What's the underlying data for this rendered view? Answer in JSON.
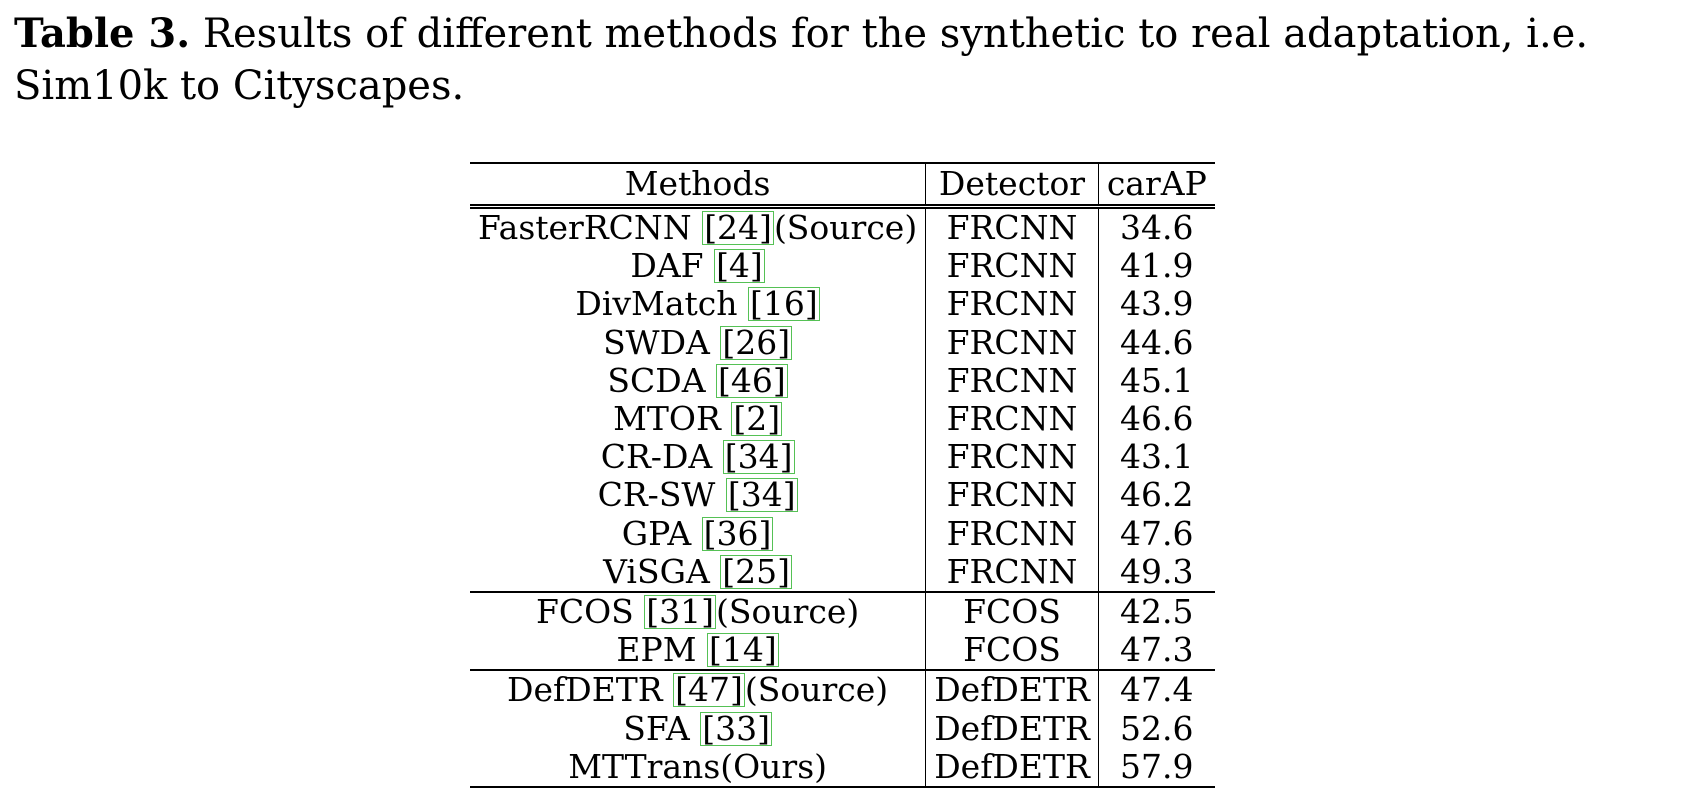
{
  "caption": {
    "label": "Table 3.",
    "text": "Results of different methods for the synthetic to real adaptation, i.e. Sim10k to Cityscapes."
  },
  "table": {
    "headers": [
      "Methods",
      "Detector",
      "carAP"
    ],
    "groups": [
      [
        {
          "method": "FasterRCNN",
          "ref": "[24]",
          "suffix": "(Source)",
          "detector": "FRCNN",
          "carAP": "34.6"
        },
        {
          "method": "DAF",
          "ref": "[4]",
          "suffix": "",
          "detector": "FRCNN",
          "carAP": "41.9"
        },
        {
          "method": "DivMatch",
          "ref": "[16]",
          "suffix": "",
          "detector": "FRCNN",
          "carAP": "43.9"
        },
        {
          "method": "SWDA",
          "ref": "[26]",
          "suffix": "",
          "detector": "FRCNN",
          "carAP": "44.6"
        },
        {
          "method": "SCDA",
          "ref": "[46]",
          "suffix": "",
          "detector": "FRCNN",
          "carAP": "45.1"
        },
        {
          "method": "MTOR",
          "ref": "[2]",
          "suffix": "",
          "detector": "FRCNN",
          "carAP": "46.6"
        },
        {
          "method": "CR-DA",
          "ref": "[34]",
          "suffix": "",
          "detector": "FRCNN",
          "carAP": "43.1"
        },
        {
          "method": "CR-SW",
          "ref": "[34]",
          "suffix": "",
          "detector": "FRCNN",
          "carAP": "46.2"
        },
        {
          "method": "GPA",
          "ref": "[36]",
          "suffix": "",
          "detector": "FRCNN",
          "carAP": "47.6"
        },
        {
          "method": "ViSGA",
          "ref": "[25]",
          "suffix": "",
          "detector": "FRCNN",
          "carAP": "49.3"
        }
      ],
      [
        {
          "method": "FCOS",
          "ref": "[31]",
          "suffix": "(Source)",
          "detector": "FCOS",
          "carAP": "42.5"
        },
        {
          "method": "EPM",
          "ref": "[14]",
          "suffix": "",
          "detector": "FCOS",
          "carAP": "47.3"
        }
      ],
      [
        {
          "method": "DefDETR",
          "ref": "[47]",
          "suffix": "(Source)",
          "detector": "DefDETR",
          "carAP": "47.4"
        },
        {
          "method": "SFA",
          "ref": "[33]",
          "suffix": "",
          "detector": "DefDETR",
          "carAP": "52.6"
        },
        {
          "method": "MTTrans(Ours)",
          "ref": "",
          "suffix": "",
          "detector": "DefDETR",
          "carAP": "57.9",
          "best": true
        }
      ]
    ]
  }
}
